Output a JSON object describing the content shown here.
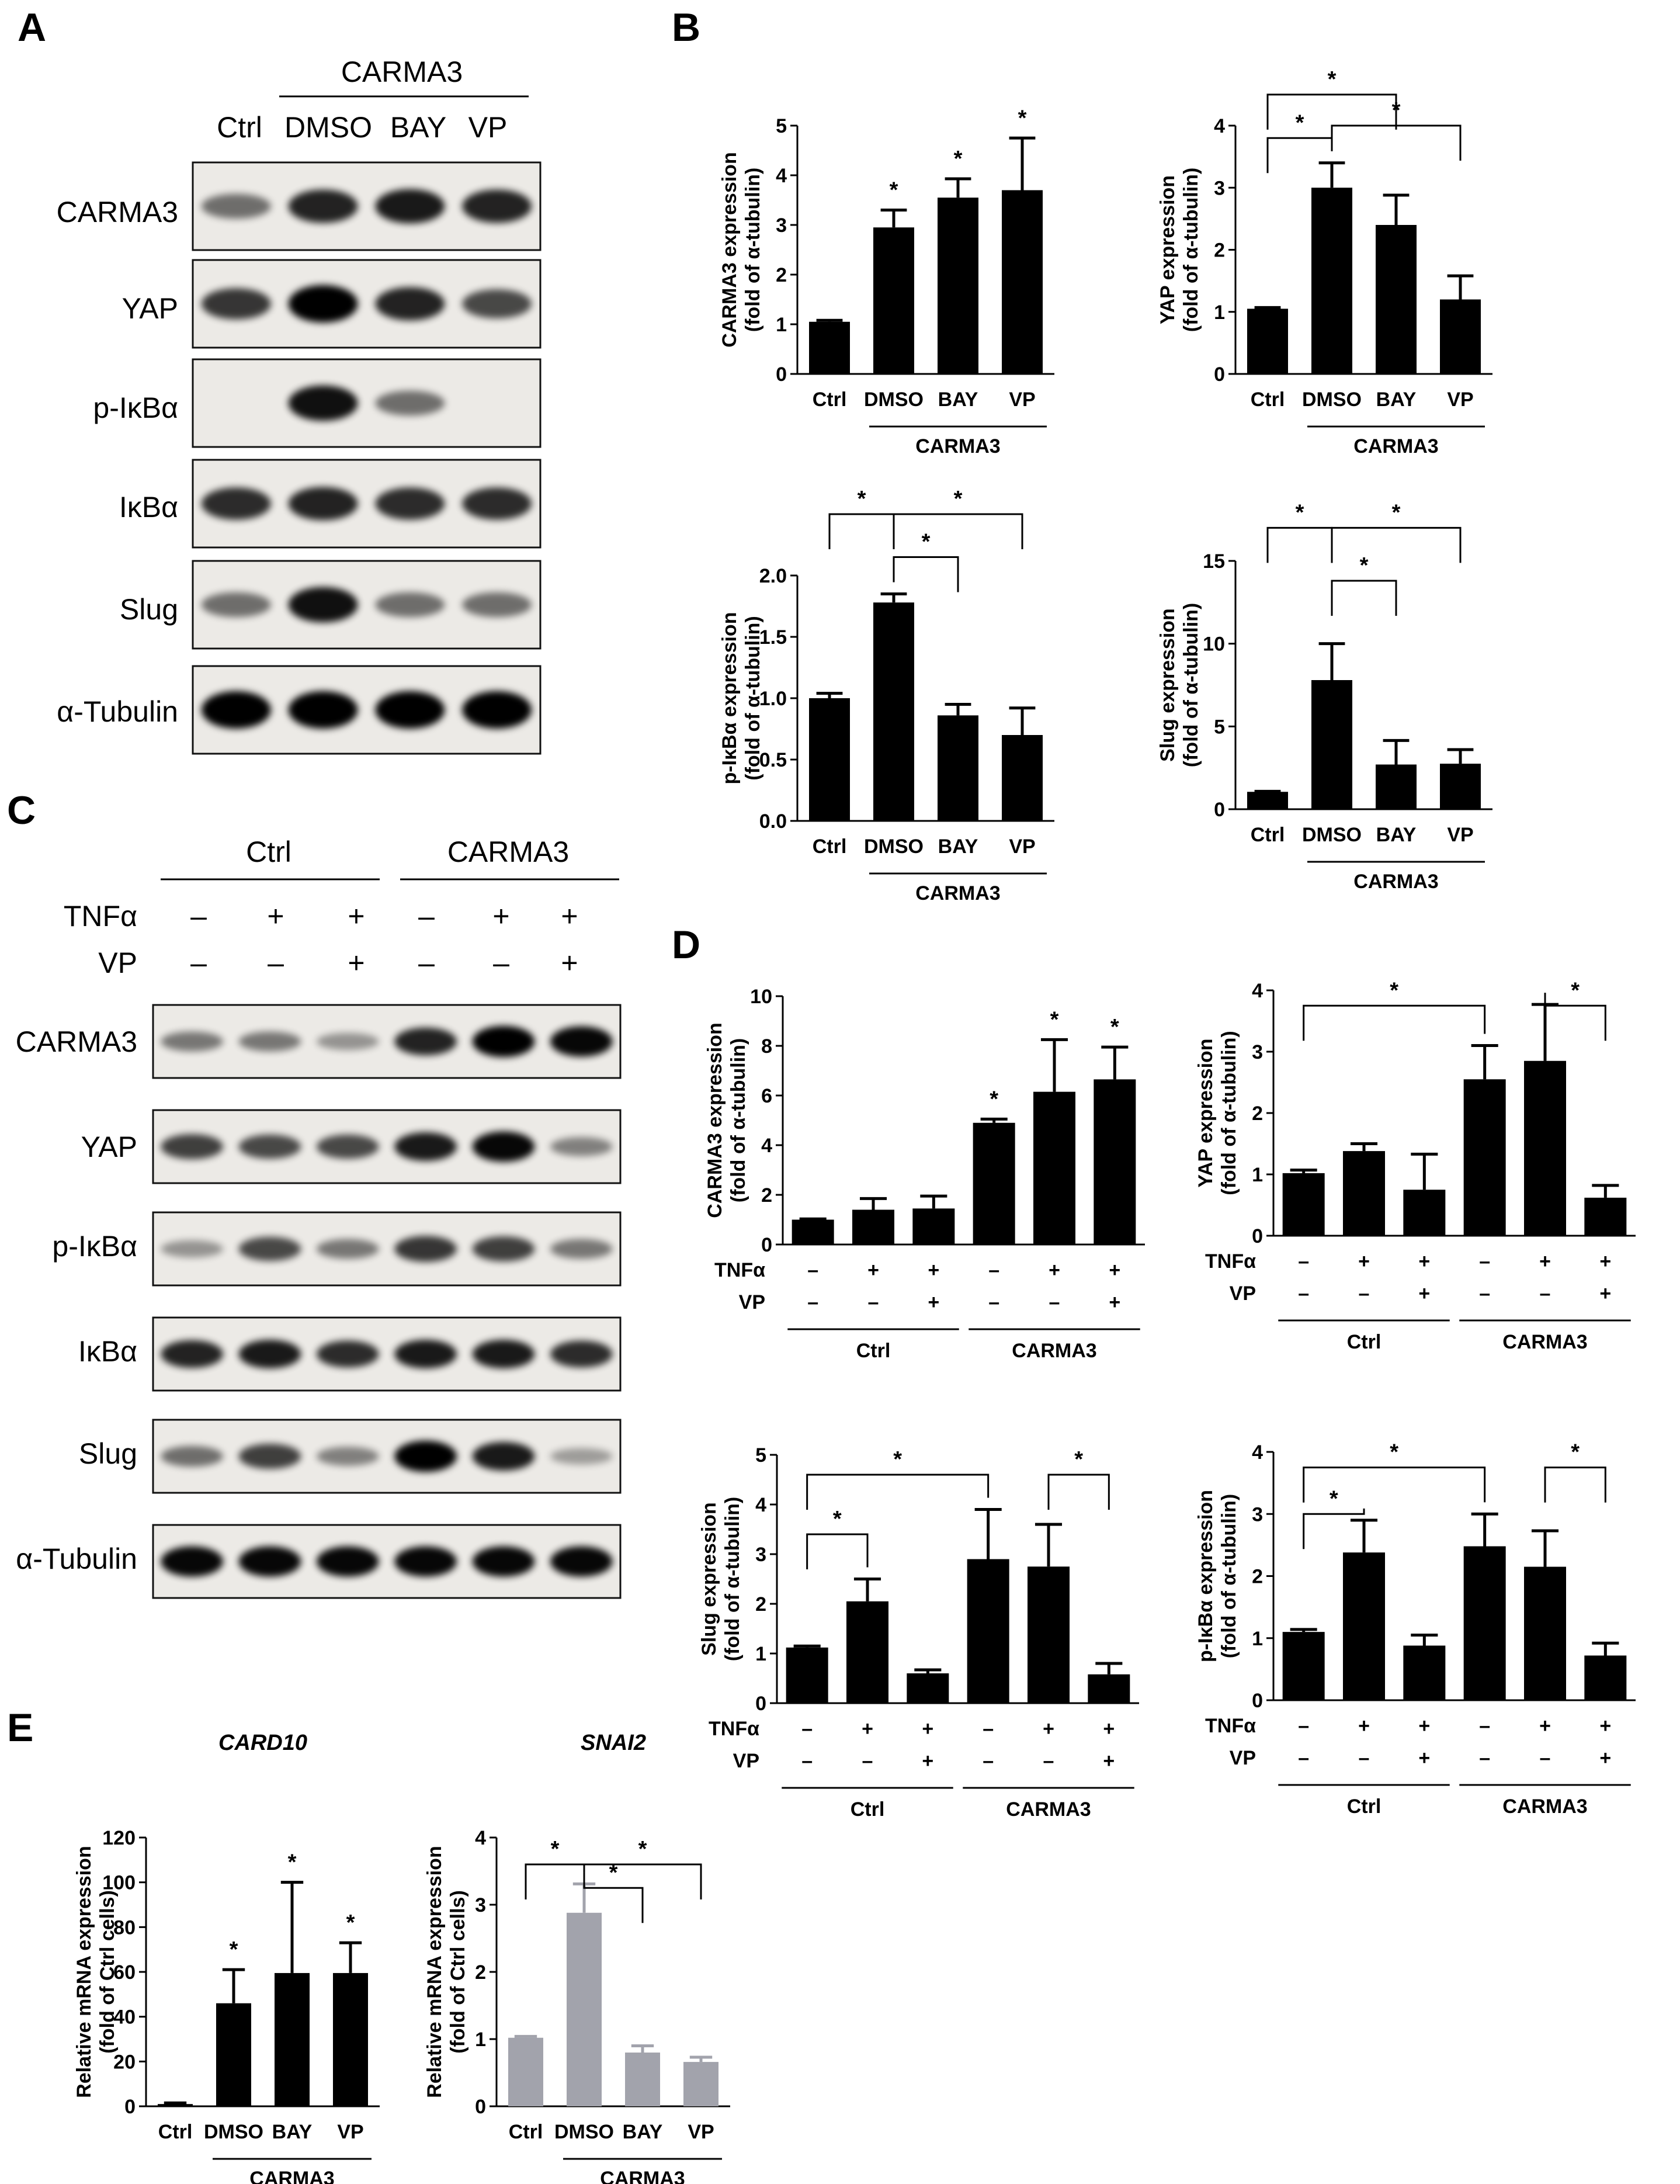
{
  "panels": {
    "A": "A",
    "B": "B",
    "C": "C",
    "D": "D",
    "E": "E"
  },
  "blotA": {
    "group_label": "CARMA3",
    "lanes": [
      "Ctrl",
      "DMSO",
      "BAY",
      "VP"
    ],
    "rows": [
      "CARMA3",
      "YAP",
      "p-IκBα",
      "IκBα",
      "Slug",
      "α-Tubulin"
    ]
  },
  "blotC": {
    "groups": [
      "Ctrl",
      "CARMA3"
    ],
    "tnf_label": "TNFα",
    "vp_label": "VP",
    "tnf": [
      "–",
      "+",
      "+",
      "–",
      "+",
      "+"
    ],
    "vp": [
      "–",
      "–",
      "+",
      "–",
      "–",
      "+"
    ],
    "rows": [
      "CARMA3",
      "YAP",
      "p-IκBα",
      "IκBα",
      "Slug",
      "α-Tubulin"
    ]
  },
  "chart_data": [
    {
      "id": "B1",
      "type": "bar",
      "categories": [
        "Ctrl",
        "DMSO",
        "BAY",
        "VP"
      ],
      "values": [
        1.05,
        2.95,
        3.55,
        3.7
      ],
      "errors": [
        0.03,
        0.35,
        0.38,
        1.05
      ],
      "ylabel": "CARMA3 expression (fold of α-tubulin)",
      "ylim": [
        0,
        5
      ],
      "yticks": [
        "0",
        "1",
        "2",
        "3",
        "4",
        "5"
      ],
      "group_label": "CARMA3",
      "stars": [
        1,
        2,
        3
      ],
      "brackets": []
    },
    {
      "id": "B2",
      "type": "bar",
      "categories": [
        "Ctrl",
        "DMSO",
        "BAY",
        "VP"
      ],
      "values": [
        1.05,
        3.0,
        2.4,
        1.2
      ],
      "errors": [
        0.02,
        0.4,
        0.48,
        0.38
      ],
      "ylabel": "YAP expression (fold of α-tubulin)",
      "ylim": [
        0,
        4
      ],
      "yticks": [
        "0",
        "1",
        "2",
        "3",
        "4"
      ],
      "group_label": "CARMA3",
      "stars": [],
      "brackets": [
        [
          0,
          1,
          3.8
        ],
        [
          0,
          2,
          4.5
        ],
        [
          1,
          3,
          4.0
        ]
      ]
    },
    {
      "id": "B3",
      "type": "bar",
      "categories": [
        "Ctrl",
        "DMSO",
        "BAY",
        "VP"
      ],
      "values": [
        1.0,
        1.78,
        0.86,
        0.7
      ],
      "errors": [
        0.04,
        0.07,
        0.09,
        0.22
      ],
      "ylabel": "p-IκBα expression (fold of α-tubulin)",
      "ylim": [
        0,
        2.0
      ],
      "yticks": [
        "0.0",
        "0.5",
        "1.0",
        "1.5",
        "2.0"
      ],
      "group_label": "CARMA3",
      "stars": [],
      "brackets": [
        [
          0,
          1,
          2.5
        ],
        [
          1,
          2,
          2.15
        ],
        [
          1,
          3,
          2.5
        ]
      ]
    },
    {
      "id": "B4",
      "type": "bar",
      "categories": [
        "Ctrl",
        "DMSO",
        "BAY",
        "VP"
      ],
      "values": [
        1.05,
        7.8,
        2.7,
        2.75
      ],
      "errors": [
        0.03,
        2.2,
        1.45,
        0.85
      ],
      "ylabel": "Slug expression (fold of α-tubulin)",
      "ylim": [
        0,
        15
      ],
      "yticks": [
        "0",
        "5",
        "10",
        "15"
      ],
      "group_label": "CARMA3",
      "stars": [],
      "brackets": [
        [
          0,
          1,
          17.0
        ],
        [
          1,
          2,
          13.8
        ],
        [
          1,
          3,
          17.0
        ]
      ]
    },
    {
      "id": "D1",
      "type": "bar",
      "values": [
        1.0,
        1.4,
        1.45,
        4.9,
        6.15,
        6.65
      ],
      "errors": [
        0.03,
        0.45,
        0.5,
        0.15,
        2.1,
        1.3
      ],
      "ylabel": "CARMA3 expression (fold of α-tubulin)",
      "ylim": [
        0,
        10
      ],
      "yticks": [
        "0",
        "2",
        "4",
        "6",
        "8",
        "10"
      ],
      "tnf": [
        "–",
        "+",
        "+",
        "–",
        "+",
        "+"
      ],
      "vp": [
        "–",
        "–",
        "+",
        "–",
        "–",
        "+"
      ],
      "groups": [
        "Ctrl",
        "CARMA3"
      ],
      "stars": [
        3,
        4,
        5
      ],
      "brackets": []
    },
    {
      "id": "D2",
      "type": "bar",
      "values": [
        1.02,
        1.38,
        0.75,
        2.55,
        2.85,
        0.62
      ],
      "errors": [
        0.05,
        0.12,
        0.58,
        0.55,
        0.92,
        0.2
      ],
      "ylabel": "YAP expression (fold of α-tubulin)",
      "ylim": [
        0,
        4
      ],
      "yticks": [
        "0",
        "1",
        "2",
        "3",
        "4"
      ],
      "tnf": [
        "–",
        "+",
        "+",
        "–",
        "+",
        "+"
      ],
      "vp": [
        "–",
        "–",
        "+",
        "–",
        "–",
        "+"
      ],
      "groups": [
        "Ctrl",
        "CARMA3"
      ],
      "stars": [],
      "brackets": [
        [
          0,
          3,
          3.75
        ],
        [
          4,
          5,
          3.75
        ]
      ]
    },
    {
      "id": "D3",
      "type": "bar",
      "values": [
        1.12,
        2.05,
        0.6,
        2.9,
        2.75,
        0.58
      ],
      "errors": [
        0.03,
        0.45,
        0.07,
        1.0,
        0.85,
        0.22
      ],
      "ylabel": "Slug expression (fold of α-tubulin)",
      "ylim": [
        0,
        5
      ],
      "yticks": [
        "0",
        "1",
        "2",
        "3",
        "4",
        "5"
      ],
      "tnf": [
        "–",
        "+",
        "+",
        "–",
        "+",
        "+"
      ],
      "vp": [
        "–",
        "–",
        "+",
        "–",
        "–",
        "+"
      ],
      "groups": [
        "Ctrl",
        "CARMA3"
      ],
      "stars": [],
      "brackets": [
        [
          0,
          1,
          3.4
        ],
        [
          0,
          3,
          4.6
        ],
        [
          4,
          5,
          4.6
        ]
      ]
    },
    {
      "id": "D4",
      "type": "bar",
      "values": [
        1.1,
        2.38,
        0.88,
        2.48,
        2.15,
        0.72
      ],
      "errors": [
        0.04,
        0.52,
        0.17,
        0.52,
        0.58,
        0.2
      ],
      "ylabel": "p-IκBα expression (fold of α-tubulin)",
      "ylim": [
        0,
        4
      ],
      "yticks": [
        "0",
        "1",
        "2",
        "3",
        "4"
      ],
      "tnf": [
        "–",
        "+",
        "+",
        "–",
        "+",
        "+"
      ],
      "vp": [
        "–",
        "–",
        "+",
        "–",
        "–",
        "+"
      ],
      "groups": [
        "Ctrl",
        "CARMA3"
      ],
      "stars": [],
      "brackets": [
        [
          0,
          1,
          3.0
        ],
        [
          0,
          3,
          3.75
        ],
        [
          4,
          5,
          3.75
        ]
      ]
    },
    {
      "id": "E1",
      "type": "bar",
      "title": "CARD10",
      "categories": [
        "Ctrl",
        "DMSO",
        "BAY",
        "VP"
      ],
      "values": [
        1.0,
        46.0,
        59.5,
        59.5
      ],
      "errors": [
        0.5,
        15.0,
        40.5,
        13.5
      ],
      "ylabel": "Relative mRNA expression (fold of Ctrl cells)",
      "ylim": [
        0,
        120
      ],
      "yticks": [
        "0",
        "20",
        "40",
        "60",
        "80",
        "100",
        "120"
      ],
      "group_label": "CARMA3",
      "color": "#000000",
      "stars": [
        1,
        2,
        3
      ],
      "brackets": []
    },
    {
      "id": "E2",
      "type": "bar",
      "title": "SNAI2",
      "categories": [
        "Ctrl",
        "DMSO",
        "BAY",
        "VP"
      ],
      "values": [
        1.02,
        2.88,
        0.8,
        0.66
      ],
      "errors": [
        0.02,
        0.43,
        0.1,
        0.07
      ],
      "ylabel": "Relative mRNA expression (fold of Ctrl cells)",
      "ylim": [
        0,
        4
      ],
      "yticks": [
        "0",
        "1",
        "2",
        "3",
        "4"
      ],
      "group_label": "CARMA3",
      "color": "#a2a3ac",
      "stars": [],
      "brackets": [
        [
          0,
          1,
          3.6
        ],
        [
          1,
          2,
          3.25
        ],
        [
          1,
          3,
          3.6
        ]
      ]
    }
  ]
}
